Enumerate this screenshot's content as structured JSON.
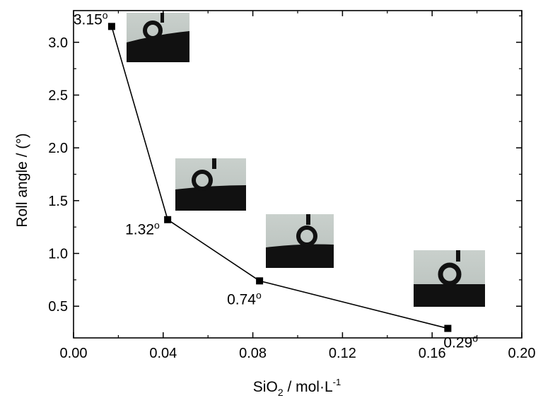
{
  "chart_data": {
    "type": "line",
    "xlabel": {
      "base": "SiO",
      "sub": "2",
      "mid": " / mol·L",
      "sup": "-1"
    },
    "ylabel": "Roll angle / (°)",
    "xlim": [
      0.0,
      0.2
    ],
    "ylim": [
      0.2,
      3.3
    ],
    "xticks": [
      "0.00",
      "0.04",
      "0.08",
      "0.12",
      "0.16",
      "0.20"
    ],
    "xtick_values": [
      0.0,
      0.04,
      0.08,
      0.12,
      0.16,
      0.2
    ],
    "yticks": [
      "0.5",
      "1.0",
      "1.5",
      "2.0",
      "2.5",
      "3.0"
    ],
    "ytick_values": [
      0.5,
      1.0,
      1.5,
      2.0,
      2.5,
      3.0
    ],
    "series": [
      {
        "name": "Roll angle",
        "x": [
          0.017,
          0.042,
          0.083,
          0.167
        ],
        "y": [
          3.15,
          1.32,
          0.74,
          0.29
        ],
        "labels": [
          "3.15",
          "1.32",
          "0.74",
          "0.29"
        ]
      }
    ],
    "degree_symbol": "o",
    "grid": false,
    "legend": "none"
  }
}
